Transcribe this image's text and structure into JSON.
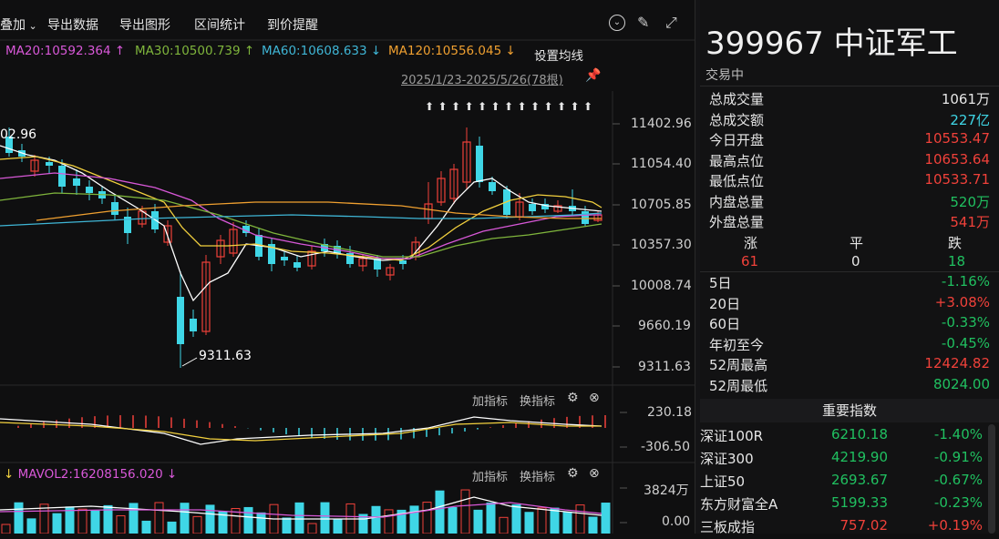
{
  "toolbar": {
    "overlay": "叠加",
    "export_data": "导出数据",
    "export_chart": "导出图形",
    "interval_stats": "区间统计",
    "price_alert": "到价提醒"
  },
  "ma": {
    "ma20": "MA20:10592.364 ↑",
    "ma30": "MA30:10500.739 ↑",
    "ma60": "MA60:10608.633 ↓",
    "ma120": "MA120:10556.045 ↓",
    "settings": "设置均线"
  },
  "range_label": "2025/1/23-2025/5/26(78根)",
  "price_axis": [
    "11402.96",
    "11054.40",
    "10705.85",
    "10357.30",
    "10008.74",
    "9660.19",
    "9311.63"
  ],
  "marker_high": "02.96",
  "marker_low": "9311.63",
  "macd_axis": [
    "230.18",
    "-306.50"
  ],
  "vol_axis": [
    "3824万",
    "0.00"
  ],
  "sub_panel": {
    "add": "加指标",
    "switch": "换指标",
    "vol_label": "MAVOL2:16208156.020 ↓"
  },
  "quote": {
    "title": "399967 中证军工",
    "status": "交易中",
    "rows": [
      {
        "label": "总成交量",
        "value": "1061万",
        "color": "#e6e6e6"
      },
      {
        "label": "总成交额",
        "value": "227亿",
        "color": "#3fd6e6"
      },
      {
        "label": "今日开盘",
        "value": "10553.47",
        "color": "#f0413a"
      },
      {
        "label": "最高点位",
        "value": "10653.64",
        "color": "#f0413a"
      },
      {
        "label": "最低点位",
        "value": "10533.71",
        "color": "#f0413a"
      },
      {
        "label": "内盘总量",
        "value": "520万",
        "color": "#20c060"
      },
      {
        "label": "外盘总量",
        "value": "541万",
        "color": "#f0413a"
      }
    ],
    "breadth": {
      "up_label": "涨",
      "flat_label": "平",
      "down_label": "跌",
      "up": "61",
      "flat": "0",
      "down": "18"
    },
    "perf": [
      {
        "label": "5日",
        "value": "-1.16%",
        "color": "#20c060"
      },
      {
        "label": "20日",
        "value": "+3.08%",
        "color": "#f0413a"
      },
      {
        "label": "60日",
        "value": "-0.33%",
        "color": "#20c060"
      },
      {
        "label": "年初至今",
        "value": "-0.45%",
        "color": "#20c060"
      },
      {
        "label": "52周最高",
        "value": "12424.82",
        "color": "#f0413a"
      },
      {
        "label": "52周最低",
        "value": "8024.00",
        "color": "#20c060"
      }
    ]
  },
  "indices": {
    "header": "重要指数",
    "rows": [
      {
        "name": "深证100R",
        "price": "6210.18",
        "change": "-1.40%",
        "color": "#20c060"
      },
      {
        "name": "深证300",
        "price": "4219.90",
        "change": "-0.91%",
        "color": "#20c060"
      },
      {
        "name": "上证50",
        "price": "2693.67",
        "change": "-0.67%",
        "color": "#20c060"
      },
      {
        "name": "东方财富全A",
        "price": "5199.33",
        "change": "-0.23%",
        "color": "#20c060"
      },
      {
        "name": "三板成指",
        "price": "757.02",
        "change": "+0.19%",
        "color": "#f0413a"
      }
    ]
  },
  "colors": {
    "up": "#f0413a",
    "down": "#3fd6e6",
    "ma5": "#ffffff",
    "ma10": "#f2d03e",
    "ma20": "#d858d8",
    "ma30": "#7fb53c",
    "ma60": "#3fb6d6",
    "ma120": "#f0a030"
  }
}
